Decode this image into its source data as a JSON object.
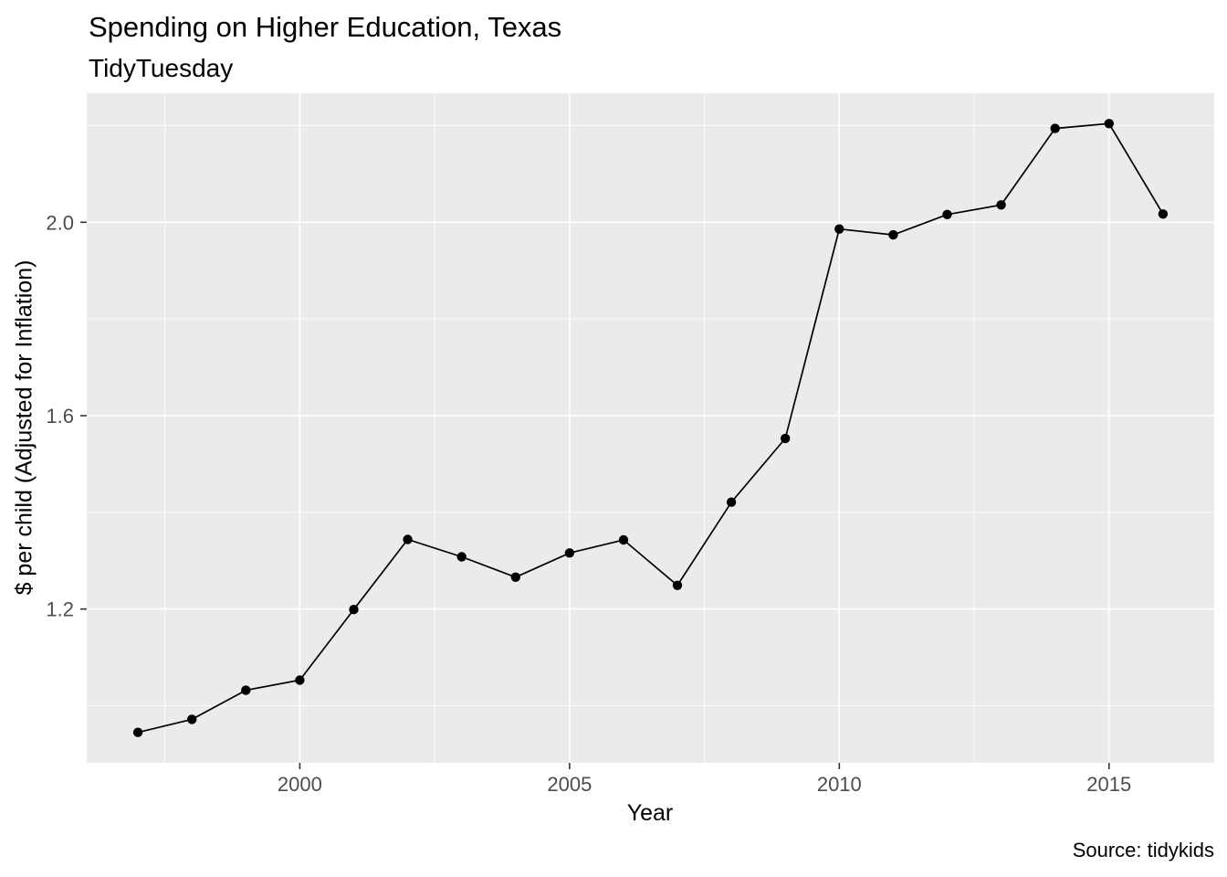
{
  "chart": {
    "title": "Spending on Higher Education, Texas",
    "subtitle": "TidyTuesday",
    "caption": "Source: tidykids",
    "xlabel": "Year",
    "ylabel": "$ per child (Adjusted for Inflation)"
  },
  "chart_data": {
    "type": "line",
    "title": "Spending on Higher Education, Texas",
    "subtitle": "TidyTuesday",
    "caption": "Source: tidykids",
    "xlabel": "Year",
    "ylabel": "$ per child (Adjusted for Inflation)",
    "x": [
      1997,
      1998,
      1999,
      2000,
      2001,
      2002,
      2003,
      2004,
      2005,
      2006,
      2007,
      2008,
      2009,
      2010,
      2011,
      2012,
      2013,
      2014,
      2015,
      2016
    ],
    "values": [
      0.945,
      0.972,
      1.032,
      1.053,
      1.199,
      1.344,
      1.308,
      1.266,
      1.316,
      1.343,
      1.249,
      1.421,
      1.553,
      1.986,
      1.974,
      2.016,
      2.036,
      2.194,
      2.204,
      2.017
    ],
    "xlim": [
      1996.05,
      2016.95
    ],
    "ylim": [
      0.882,
      2.267
    ],
    "x_ticks": [
      2000,
      2005,
      2010,
      2015
    ],
    "x_tick_labels": [
      "2000",
      "2005",
      "2010",
      "2015"
    ],
    "x_minor_ticks": [
      1997.5,
      2002.5,
      2007.5,
      2012.5
    ],
    "y_ticks": [
      1.2,
      1.6,
      2.0
    ],
    "y_tick_labels": [
      "1.2",
      "1.6",
      "2.0"
    ],
    "y_minor_ticks": [
      1.0,
      1.4,
      1.8,
      2.2
    ],
    "grid": true,
    "legend": false,
    "colors": {
      "panel_background": "#EBEBEB",
      "grid_line": "#FFFFFF",
      "line": "#000000",
      "point": "#000000",
      "tick_label": "#4D4D4D",
      "tick_mark": "#333333",
      "title_text": "#000000"
    }
  }
}
